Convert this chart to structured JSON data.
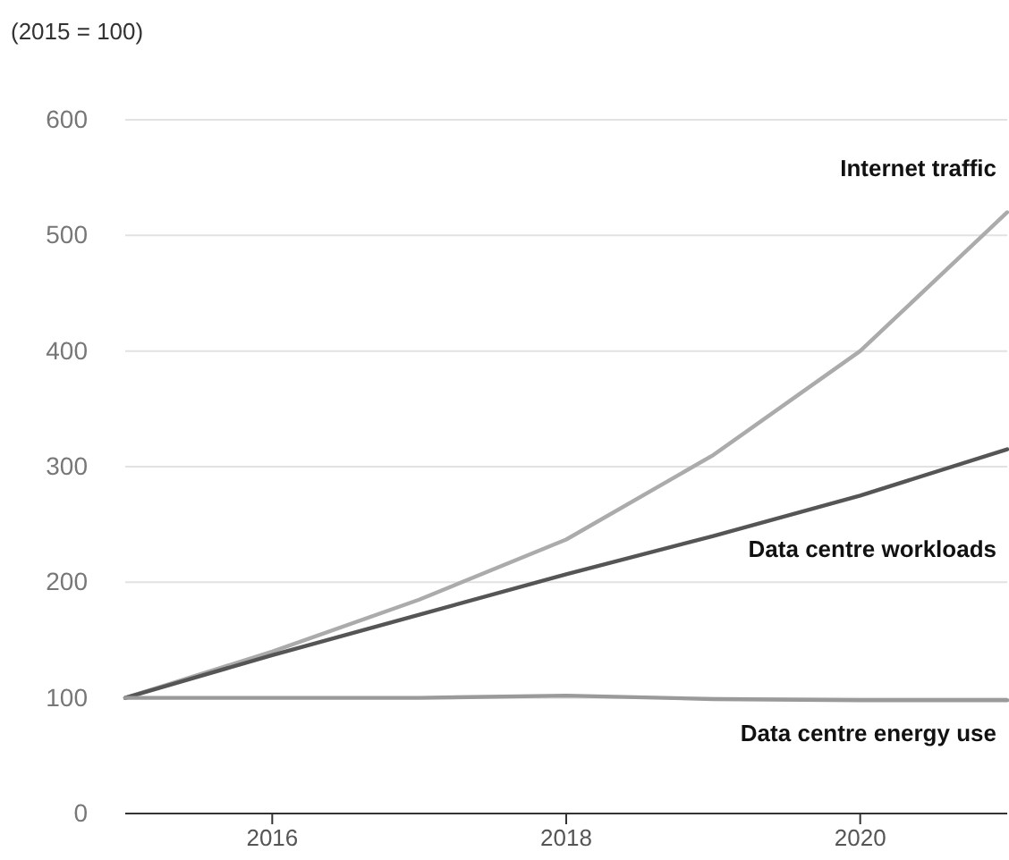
{
  "chart_data": {
    "type": "line",
    "ylabel": "(2015 = 100)",
    "x": [
      2015,
      2016,
      2017,
      2018,
      2019,
      2020,
      2021
    ],
    "series": [
      {
        "name": "Internet traffic",
        "color": "#ababab",
        "values": [
          100,
          140,
          185,
          237,
          310,
          400,
          520
        ]
      },
      {
        "name": "Data centre workloads",
        "color": "#555555",
        "values": [
          100,
          137,
          172,
          207,
          240,
          275,
          315
        ]
      },
      {
        "name": "Data centre energy use",
        "color": "#9a9a9a",
        "values": [
          100,
          100,
          100,
          102,
          99,
          98,
          98
        ]
      }
    ],
    "xlim": [
      2015,
      2021
    ],
    "xticks": [
      2016,
      2018,
      2020
    ],
    "ylim": [
      0,
      600
    ],
    "yticks": [
      0,
      100,
      200,
      300,
      400,
      500,
      600
    ],
    "grid": "y",
    "legend": false,
    "marker": "none",
    "line_style": "solid"
  }
}
